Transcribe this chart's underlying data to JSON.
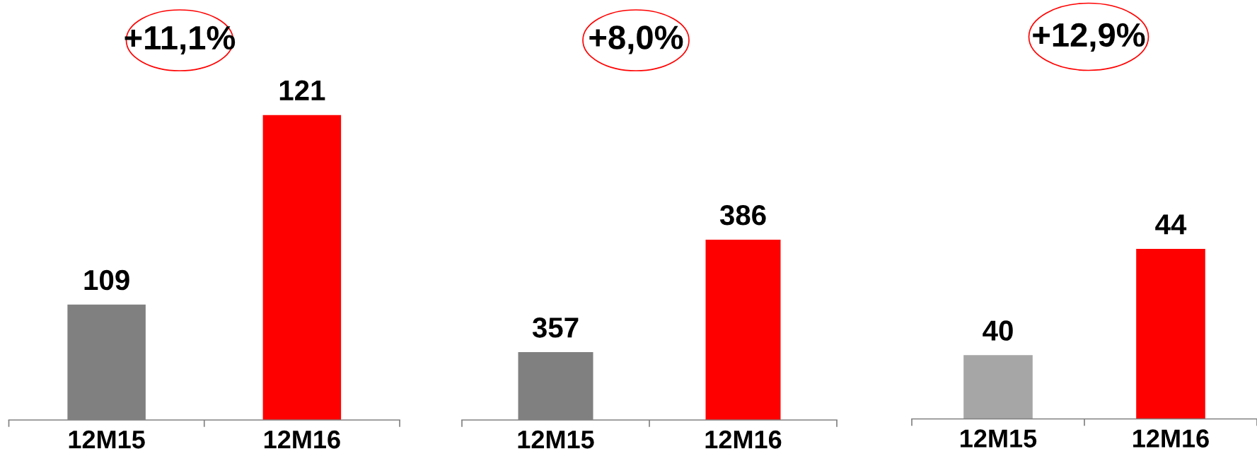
{
  "chart_data": [
    {
      "type": "bar",
      "categories": [
        "12M15",
        "12M16"
      ],
      "values": [
        109,
        121
      ],
      "colors": [
        "#808080",
        "#ff0000"
      ],
      "data_labels": true,
      "ylim": [
        101.7,
        121
      ],
      "tick_labels": "x",
      "annotations": [
        "+11,1%"
      ]
    },
    {
      "type": "bar",
      "categories": [
        "12M15",
        "12M16"
      ],
      "values": [
        357,
        386
      ],
      "colors": [
        "#808080",
        "#ff0000"
      ],
      "data_labels": true,
      "ylim": [
        339.5,
        386
      ],
      "tick_labels": "x",
      "annotations": [
        "+8,0%"
      ]
    },
    {
      "type": "bar",
      "categories": [
        "12M15",
        "12M16"
      ],
      "values": [
        40,
        44
      ],
      "colors": [
        "#a6a6a6",
        "#ff0000"
      ],
      "data_labels": true,
      "ylim": [
        37.6,
        44
      ],
      "tick_labels": "x",
      "annotations": [
        "+12,9%"
      ]
    }
  ]
}
